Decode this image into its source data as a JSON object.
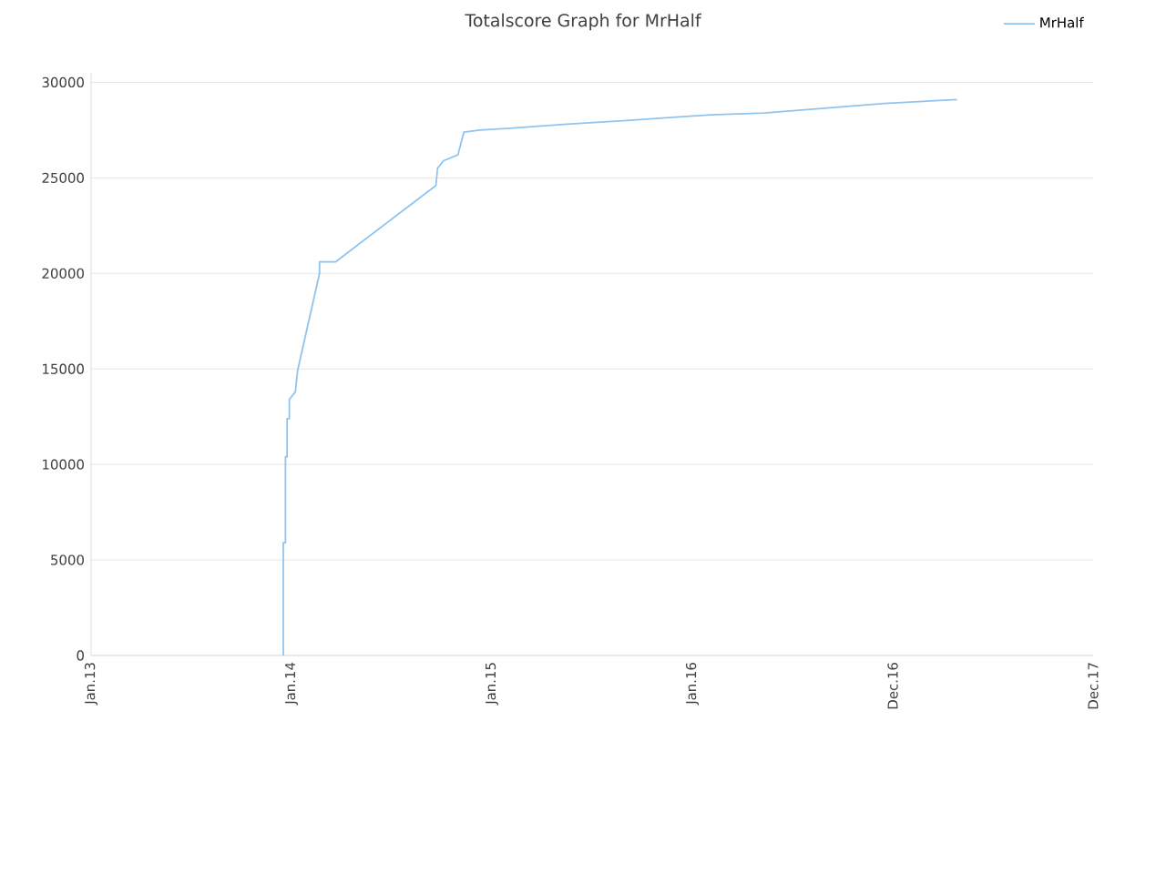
{
  "chart_data": {
    "type": "line",
    "title": "Totalscore Graph for MrHalf",
    "x": [
      "2013-12-17",
      "2013-12-17",
      "2013-12-21",
      "2013-12-21",
      "2013-12-24",
      "2013-12-24",
      "2013-12-28",
      "2013-12-28",
      "2014-01-08",
      "2014-01-12",
      "2014-02-21",
      "2014-02-21",
      "2014-03-22",
      "2014-09-21",
      "2014-09-24",
      "2014-10-05",
      "2014-10-31",
      "2014-11-11",
      "2014-12-10",
      "2015-02-03",
      "2015-05-12",
      "2015-09-03",
      "2016-02-03",
      "2016-05-11",
      "2016-12-16",
      "2017-04-27"
    ],
    "series": [
      {
        "name": "MrHalf",
        "color": "#90c4f0",
        "values": [
          0,
          5900,
          5900,
          10400,
          10400,
          12400,
          12400,
          13400,
          13800,
          14900,
          20000,
          20600,
          20600,
          24600,
          25500,
          25900,
          26200,
          27400,
          27500,
          27600,
          27800,
          28000,
          28300,
          28400,
          28900,
          29100
        ]
      }
    ],
    "xlim": [
      "2013-01-01",
      "2017-12-31"
    ],
    "xticks": [
      {
        "value": "2013-01-01",
        "label": "Jan.13"
      },
      {
        "value": "2014-01-01",
        "label": "Jan.14"
      },
      {
        "value": "2015-01-01",
        "label": "Jan.15"
      },
      {
        "value": "2016-01-01",
        "label": "Jan.16"
      },
      {
        "value": "2016-12-31",
        "label": "Dec.16"
      },
      {
        "value": "2017-12-31",
        "label": "Dec.17"
      }
    ],
    "ylim": [
      0,
      30500
    ],
    "yticks": [
      0,
      5000,
      10000,
      15000,
      20000,
      25000,
      30000
    ],
    "grid": "y",
    "legend": "top right",
    "marker": "none",
    "line_style": "solid"
  }
}
